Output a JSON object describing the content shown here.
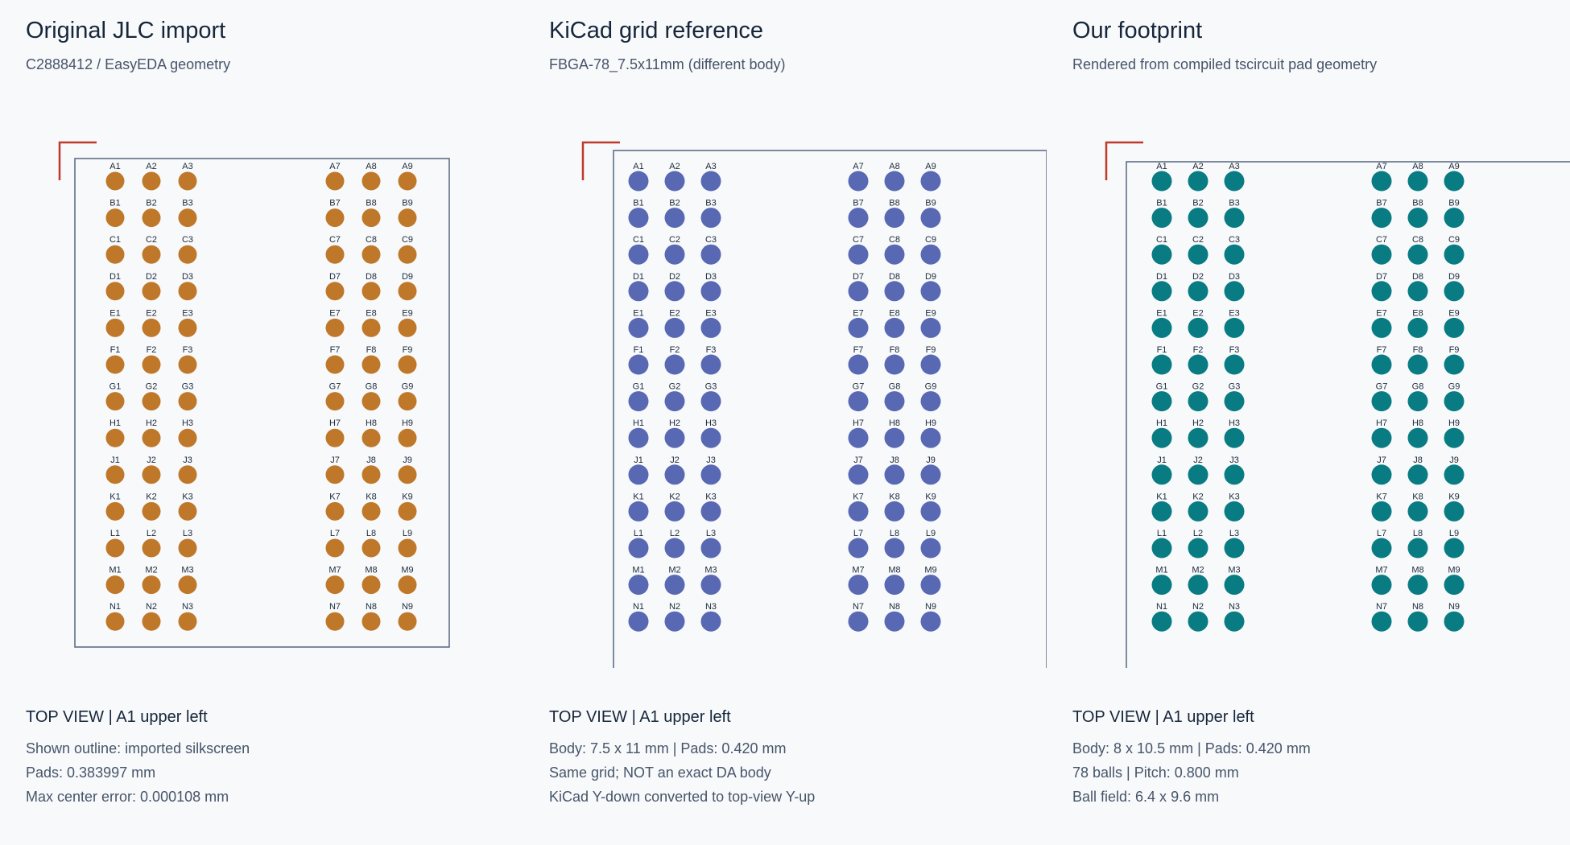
{
  "rows": [
    "A",
    "B",
    "C",
    "D",
    "E",
    "F",
    "G",
    "H",
    "J",
    "K",
    "L",
    "M",
    "N"
  ],
  "cols": [
    "1",
    "2",
    "3",
    "7",
    "8",
    "9"
  ],
  "panels": [
    {
      "title": "Original JLC import",
      "subtitle": "C2888412 / EasyEDA geometry",
      "view_label": "TOP VIEW  |  A1 upper left",
      "info": [
        "Shown outline: imported silkscreen",
        "Pads: 0.383997 mm",
        "Max center error: 0.000108 mm"
      ],
      "pad_color": "#bf782a"
    },
    {
      "title": "KiCad grid reference",
      "subtitle": "FBGA-78_7.5x11mm (different body)",
      "view_label": "TOP VIEW  |  A1 upper left",
      "info": [
        "Body: 7.5 x 11 mm   |   Pads: 0.420 mm",
        "Same grid; NOT an exact DA body",
        "KiCad Y-down converted to top-view Y-up"
      ],
      "pad_color": "#5868b2"
    },
    {
      "title": "Our footprint",
      "subtitle": "Rendered from compiled tscircuit pad geometry",
      "view_label": "TOP VIEW  |  A1 upper left",
      "info": [
        "Body: 8 x 10.5 mm   |   Pads: 0.420 mm",
        "78 balls   |   Pitch: 0.800 mm",
        "Ball field: 6.4 x 9.6 mm"
      ],
      "pad_color": "#087c82"
    }
  ],
  "colors": {
    "outline": "#5f6f86",
    "pin1_marker": "#c0392b"
  }
}
